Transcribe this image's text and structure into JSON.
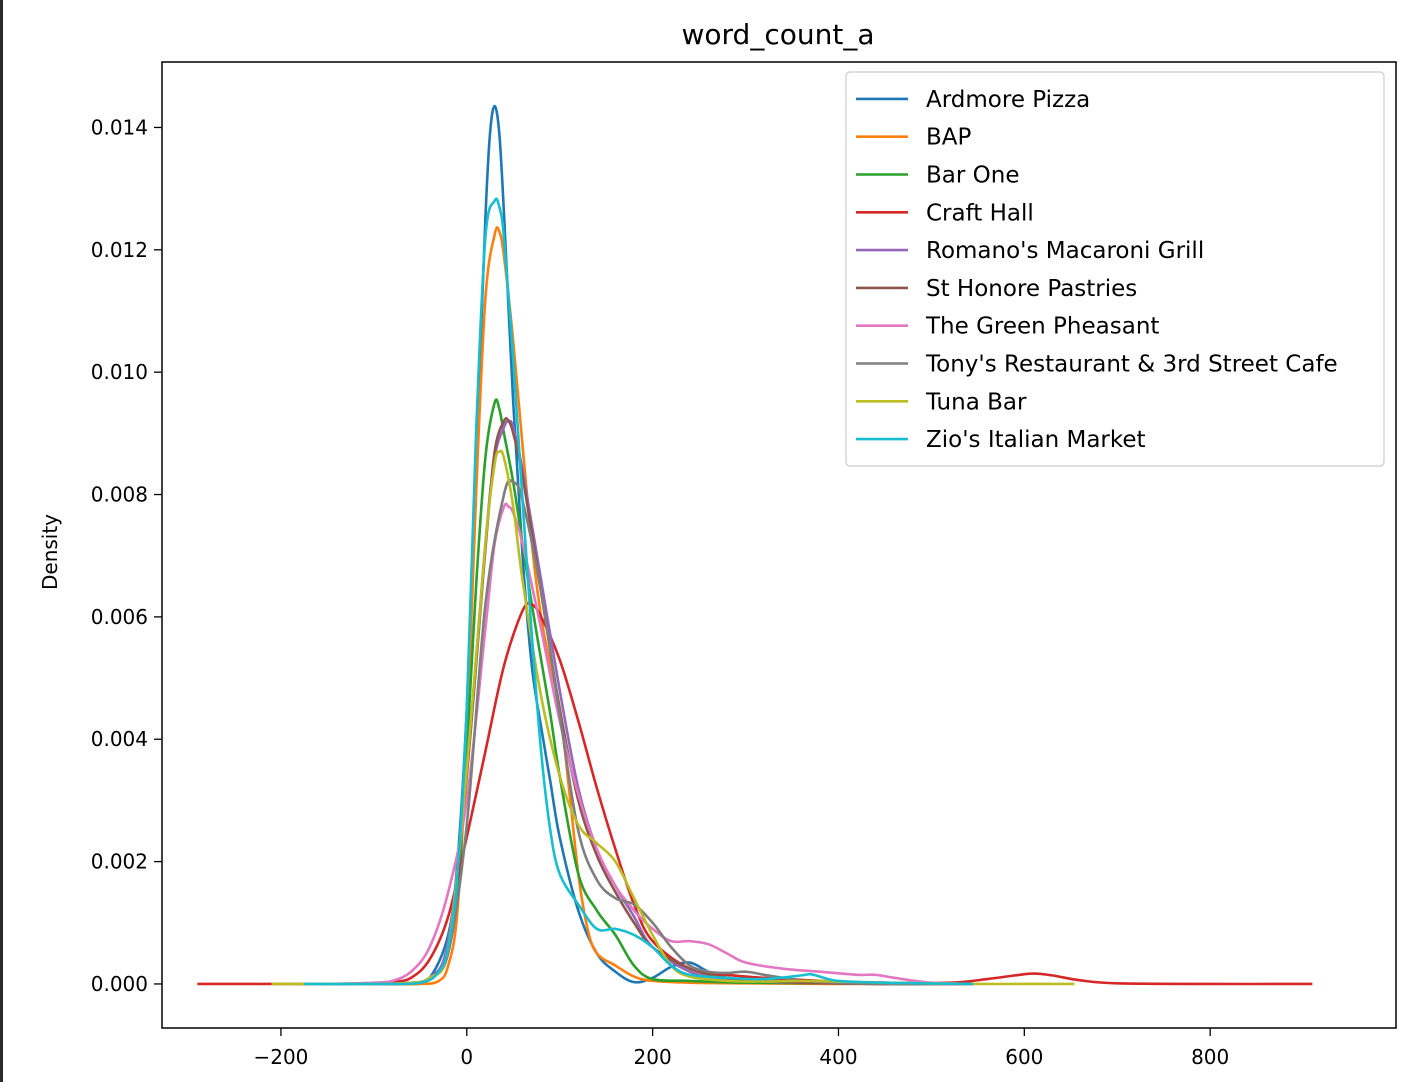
{
  "chart_data": {
    "type": "line",
    "title": "word_count_a",
    "xlabel": "",
    "ylabel": "Density",
    "xlim": [
      -328,
      1000
    ],
    "ylim": [
      -0.00072,
      0.01507
    ],
    "x_ticks": [
      {
        "value": -200,
        "label": "−200"
      },
      {
        "value": 0,
        "label": "0"
      },
      {
        "value": 200,
        "label": "200"
      },
      {
        "value": 400,
        "label": "400"
      },
      {
        "value": 600,
        "label": "600"
      },
      {
        "value": 800,
        "label": "800"
      }
    ],
    "y_ticks": [
      {
        "value": 0.0,
        "label": "0.000"
      },
      {
        "value": 0.002,
        "label": "0.002"
      },
      {
        "value": 0.004,
        "label": "0.004"
      },
      {
        "value": 0.006,
        "label": "0.006"
      },
      {
        "value": 0.008,
        "label": "0.008"
      },
      {
        "value": 0.01,
        "label": "0.010"
      },
      {
        "value": 0.012,
        "label": "0.012"
      },
      {
        "value": 0.014,
        "label": "0.014"
      }
    ],
    "legend_position": "top-right",
    "grid": false,
    "series": [
      {
        "name": "Ardmore Pizza",
        "color": "#1f77b4",
        "x": [
          -180,
          -100,
          -60,
          -40,
          -20,
          -10,
          0,
          10,
          20,
          25,
          30,
          35,
          40,
          50,
          60,
          70,
          80,
          90,
          100,
          120,
          140,
          160,
          180,
          200,
          220,
          240,
          260,
          280,
          300,
          340,
          400,
          450,
          520,
          545
        ],
        "y": [
          0,
          0,
          1e-05,
          0.0001,
          0.0008,
          0.002,
          0.0045,
          0.0085,
          0.0125,
          0.0139,
          0.01435,
          0.0139,
          0.0126,
          0.0095,
          0.007,
          0.0052,
          0.0042,
          0.0033,
          0.0024,
          0.0012,
          0.0005,
          0.0002,
          3e-05,
          0.0001,
          0.00028,
          0.00035,
          0.0002,
          0.0001,
          3e-05,
          8e-05,
          2e-05,
          0,
          0,
          0
        ]
      },
      {
        "name": "BAP",
        "color": "#ff7f0e",
        "x": [
          -180,
          -100,
          -50,
          -30,
          -20,
          -10,
          0,
          10,
          20,
          30,
          35,
          40,
          50,
          60,
          70,
          80,
          90,
          100,
          110,
          120,
          130,
          140,
          160,
          180,
          200,
          240,
          300,
          400,
          545
        ],
        "y": [
          0,
          0,
          0,
          5e-05,
          0.0003,
          0.0012,
          0.004,
          0.008,
          0.0112,
          0.01225,
          0.0123,
          0.0119,
          0.0105,
          0.0088,
          0.0072,
          0.006,
          0.0052,
          0.0045,
          0.0032,
          0.0018,
          0.0009,
          0.0005,
          0.0003,
          0.00012,
          5e-05,
          2e-05,
          1e-05,
          0,
          0
        ]
      },
      {
        "name": "Bar One",
        "color": "#2ca02c",
        "x": [
          -180,
          -100,
          -50,
          -30,
          -20,
          -10,
          0,
          10,
          20,
          30,
          35,
          40,
          50,
          60,
          70,
          80,
          90,
          100,
          120,
          140,
          160,
          180,
          200,
          240,
          300,
          400,
          545
        ],
        "y": [
          0,
          0,
          2e-05,
          0.0002,
          0.0006,
          0.0015,
          0.0038,
          0.0065,
          0.0086,
          0.0095,
          0.0094,
          0.009,
          0.0082,
          0.0072,
          0.0062,
          0.0053,
          0.0044,
          0.0034,
          0.0018,
          0.0012,
          0.0008,
          0.0003,
          8e-05,
          5e-05,
          2e-05,
          1e-05,
          0
        ]
      },
      {
        "name": "Craft Hall",
        "color": "#d62728",
        "x": [
          -290,
          -200,
          -150,
          -100,
          -80,
          -60,
          -40,
          -20,
          0,
          20,
          40,
          60,
          70,
          80,
          100,
          120,
          140,
          160,
          180,
          200,
          240,
          280,
          320,
          380,
          450,
          520,
          560,
          590,
          610,
          630,
          660,
          700,
          800,
          910
        ],
        "y": [
          0,
          0,
          0,
          1e-05,
          3e-05,
          0.0001,
          0.0004,
          0.0011,
          0.0024,
          0.0038,
          0.0052,
          0.0061,
          0.0062,
          0.006,
          0.0053,
          0.0043,
          0.0032,
          0.0022,
          0.0013,
          0.0007,
          0.00025,
          0.00015,
          0.0001,
          5e-05,
          2e-05,
          2e-05,
          8e-05,
          0.00014,
          0.00017,
          0.00014,
          6e-05,
          1e-05,
          0,
          0
        ]
      },
      {
        "name": "Romano's Macaroni Grill",
        "color": "#9467bd",
        "x": [
          -180,
          -100,
          -60,
          -40,
          -20,
          0,
          20,
          30,
          40,
          45,
          50,
          60,
          80,
          100,
          120,
          140,
          160,
          180,
          200,
          240,
          280,
          320,
          360,
          400,
          450,
          545
        ],
        "y": [
          0,
          0,
          2e-05,
          0.0001,
          0.0007,
          0.0035,
          0.0072,
          0.0086,
          0.0091,
          0.0092,
          0.0091,
          0.0084,
          0.0066,
          0.0048,
          0.0032,
          0.0022,
          0.0016,
          0.0011,
          0.0006,
          0.0002,
          8e-05,
          4e-05,
          2e-05,
          1e-05,
          0,
          0
        ]
      },
      {
        "name": "St Honore Pastries",
        "color": "#8c564b",
        "x": [
          -180,
          -100,
          -60,
          -40,
          -20,
          0,
          20,
          30,
          40,
          45,
          50,
          60,
          80,
          100,
          120,
          140,
          160,
          180,
          200,
          240,
          280,
          320,
          360,
          400,
          450,
          545
        ],
        "y": [
          0,
          0,
          1e-05,
          0.0001,
          0.0006,
          0.0034,
          0.0071,
          0.0087,
          0.0092,
          0.0092,
          0.009,
          0.0083,
          0.0064,
          0.0045,
          0.003,
          0.0021,
          0.0015,
          0.001,
          0.0006,
          0.00025,
          0.0001,
          5e-05,
          2e-05,
          1e-05,
          0,
          0
        ]
      },
      {
        "name": "The Green Pheasant",
        "color": "#e377c2",
        "x": [
          -210,
          -150,
          -100,
          -80,
          -60,
          -40,
          -20,
          0,
          20,
          30,
          40,
          45,
          50,
          60,
          80,
          100,
          120,
          140,
          160,
          180,
          200,
          220,
          240,
          260,
          280,
          300,
          340,
          380,
          420,
          440,
          460,
          500,
          545
        ],
        "y": [
          0,
          0,
          2e-05,
          5e-05,
          0.0002,
          0.0006,
          0.0015,
          0.003,
          0.0058,
          0.0072,
          0.0078,
          0.0078,
          0.0077,
          0.0072,
          0.0058,
          0.0043,
          0.0031,
          0.0022,
          0.0016,
          0.0012,
          0.0009,
          0.0007,
          0.0007,
          0.00065,
          0.0005,
          0.00035,
          0.00025,
          0.0002,
          0.00015,
          0.00015,
          0.0001,
          2e-05,
          0
        ]
      },
      {
        "name": "Tony's Restaurant & 3rd Street Cafe",
        "color": "#7f7f7f",
        "x": [
          -180,
          -100,
          -60,
          -40,
          -20,
          0,
          20,
          40,
          50,
          60,
          80,
          100,
          120,
          140,
          160,
          180,
          200,
          220,
          240,
          260,
          280,
          300,
          320,
          340,
          360,
          400,
          450,
          545
        ],
        "y": [
          0,
          0,
          2e-05,
          0.0001,
          0.0005,
          0.0026,
          0.0062,
          0.008,
          0.0082,
          0.0079,
          0.0064,
          0.0044,
          0.0025,
          0.0017,
          0.0014,
          0.0013,
          0.001,
          0.0006,
          0.0003,
          0.0002,
          0.00018,
          0.0002,
          0.00015,
          0.0001,
          5e-05,
          2e-05,
          0,
          0
        ]
      },
      {
        "name": "Tuna Bar",
        "color": "#bcbd22",
        "x": [
          -210,
          -150,
          -100,
          -60,
          -40,
          -20,
          0,
          20,
          30,
          35,
          40,
          50,
          60,
          80,
          100,
          120,
          140,
          160,
          180,
          200,
          220,
          240,
          280,
          320,
          360,
          400,
          450,
          500,
          550,
          600,
          654
        ],
        "y": [
          0,
          0,
          0,
          2e-05,
          0.0001,
          0.0006,
          0.0035,
          0.0072,
          0.0085,
          0.0087,
          0.0086,
          0.0078,
          0.0066,
          0.0047,
          0.0034,
          0.0026,
          0.0023,
          0.002,
          0.0014,
          0.0008,
          0.0003,
          0.00012,
          5e-05,
          4e-05,
          5e-05,
          4e-05,
          2e-05,
          1e-05,
          0,
          0,
          0
        ]
      },
      {
        "name": "Zio's Italian Market",
        "color": "#17becf",
        "x": [
          -175,
          -100,
          -50,
          -30,
          -20,
          -10,
          0,
          10,
          20,
          30,
          35,
          40,
          50,
          60,
          70,
          80,
          90,
          100,
          120,
          140,
          160,
          180,
          200,
          220,
          240,
          280,
          320,
          360,
          370,
          380,
          400,
          450,
          545
        ],
        "y": [
          0,
          0,
          2e-05,
          0.0002,
          0.0006,
          0.0018,
          0.0045,
          0.009,
          0.0122,
          0.0128,
          0.0127,
          0.0122,
          0.0102,
          0.0079,
          0.0057,
          0.0038,
          0.0025,
          0.0018,
          0.0013,
          0.0009,
          0.0009,
          0.0008,
          0.0006,
          0.0003,
          0.00015,
          0.0001,
          8e-05,
          0.00014,
          0.00016,
          0.00012,
          5e-05,
          2e-05,
          0
        ]
      }
    ]
  }
}
